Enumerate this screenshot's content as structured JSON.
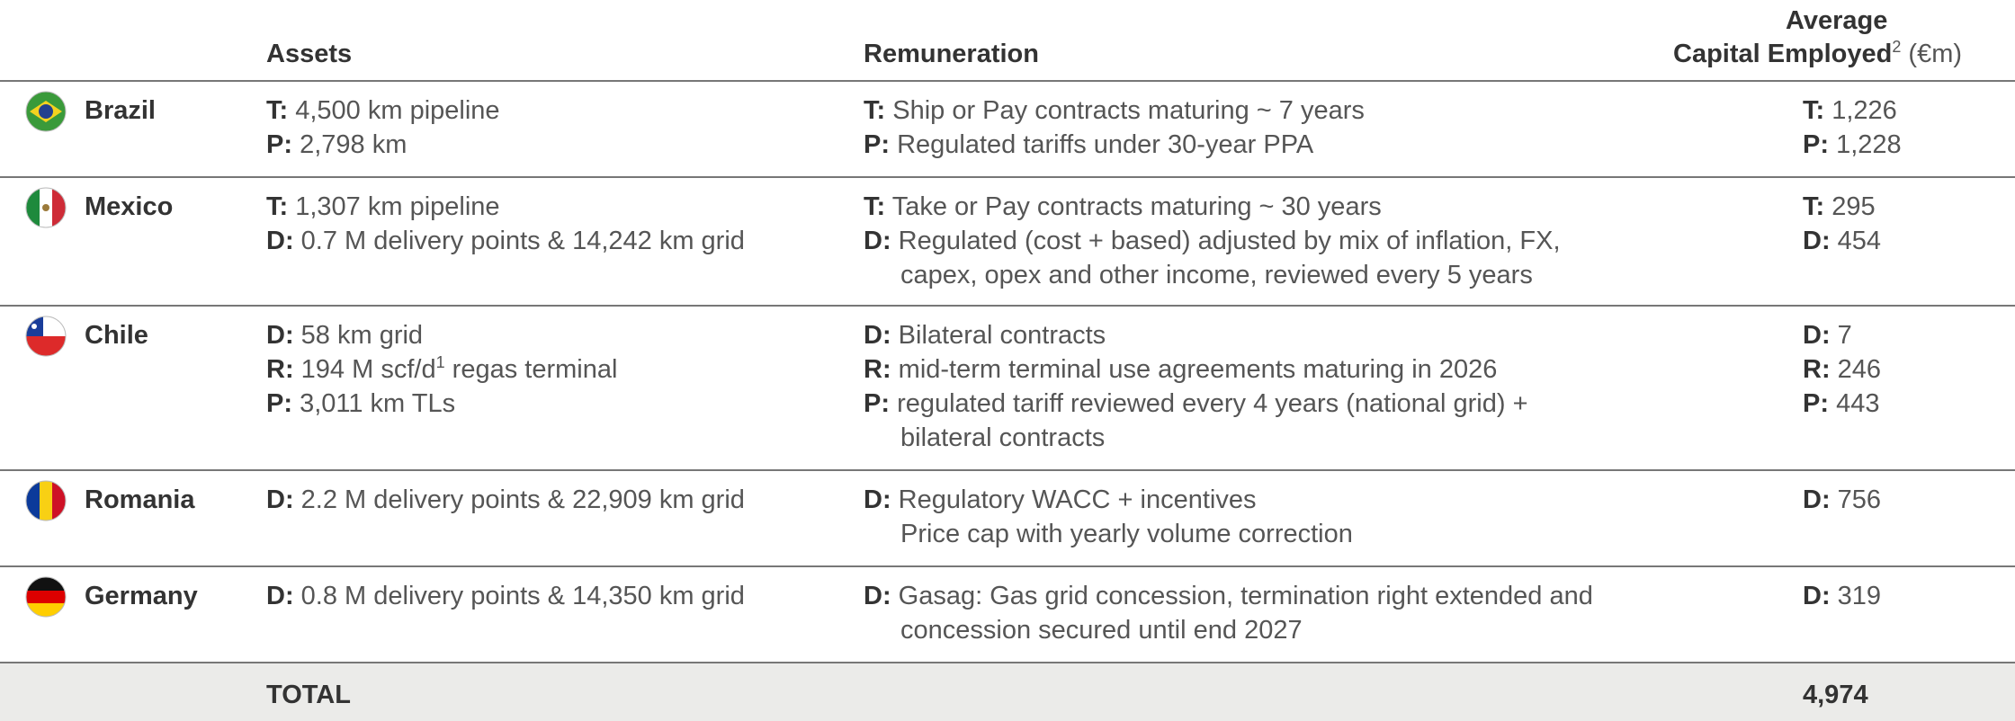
{
  "table": {
    "headers": {
      "assets": "Assets",
      "remuneration": "Remuneration",
      "capital": {
        "line1": "Average",
        "line2": "Capital Employed",
        "note": "2",
        "unit": "(€m)"
      }
    },
    "rows": [
      {
        "country": "Brazil",
        "assets": [
          {
            "key": "T:",
            "text": "4,500 km pipeline"
          },
          {
            "key": "P:",
            "text": "2,798 km"
          }
        ],
        "remuneration": [
          {
            "key": "T:",
            "text": "Ship or Pay contracts maturing ~ 7 years"
          },
          {
            "key": "P:",
            "text": "Regulated tariffs under 30-year PPA"
          }
        ],
        "capital": [
          {
            "key": "T:",
            "text": "1,226"
          },
          {
            "key": "P:",
            "text": "1,228"
          }
        ]
      },
      {
        "country": "Mexico",
        "assets": [
          {
            "key": "T:",
            "text": "1,307 km pipeline"
          },
          {
            "key": "D:",
            "text": "0.7 M delivery points & 14,242 km grid"
          }
        ],
        "remuneration": [
          {
            "key": "T:",
            "text": "Take or Pay contracts maturing ~ 30 years"
          },
          {
            "key": "D:",
            "text": "Regulated (cost + based) adjusted by mix of inflation, FX,"
          },
          {
            "text": "capex, opex and other income, reviewed every 5 years"
          }
        ],
        "capital": [
          {
            "key": "T:",
            "text": "295"
          },
          {
            "key": "D:",
            "text": "454"
          }
        ]
      },
      {
        "country": "Chile",
        "assets": [
          {
            "key": "D:",
            "text": "58 km grid"
          },
          {
            "key": "R:",
            "text": "194 M scf/d",
            "sup": "1",
            "rest": "regas terminal"
          },
          {
            "key": "P:",
            "text": "3,011 km TLs"
          }
        ],
        "remuneration": [
          {
            "key": "D:",
            "text": "Bilateral contracts"
          },
          {
            "key": "R:",
            "text": "mid-term terminal use agreements maturing in 2026"
          },
          {
            "key": "P:",
            "text": "regulated tariff reviewed every 4 years (national grid) +"
          },
          {
            "text": "bilateral contracts"
          }
        ],
        "capital": [
          {
            "key": "D:",
            "text": "7"
          },
          {
            "key": "R:",
            "text": "246"
          },
          {
            "key": "P:",
            "text": "443"
          }
        ]
      },
      {
        "country": "Romania",
        "assets": [
          {
            "key": "D:",
            "text": "2.2 M delivery points & 22,909 km grid"
          }
        ],
        "remuneration": [
          {
            "key": "D:",
            "text": "Regulatory WACC + incentives"
          },
          {
            "text": "Price cap with yearly volume correction"
          }
        ],
        "capital": [
          {
            "key": "D:",
            "text": "756"
          }
        ]
      },
      {
        "country": "Germany",
        "assets": [
          {
            "key": "D:",
            "text": "0.8 M delivery points & 14,350 km grid"
          }
        ],
        "remuneration": [
          {
            "key": "D:",
            "text": "Gasag: Gas grid concession, termination right extended and"
          },
          {
            "text": "concession secured until end 2027"
          }
        ],
        "capital": [
          {
            "key": "D:",
            "text": "319"
          }
        ]
      }
    ],
    "total": {
      "label": "TOTAL",
      "value": "4,974"
    }
  }
}
